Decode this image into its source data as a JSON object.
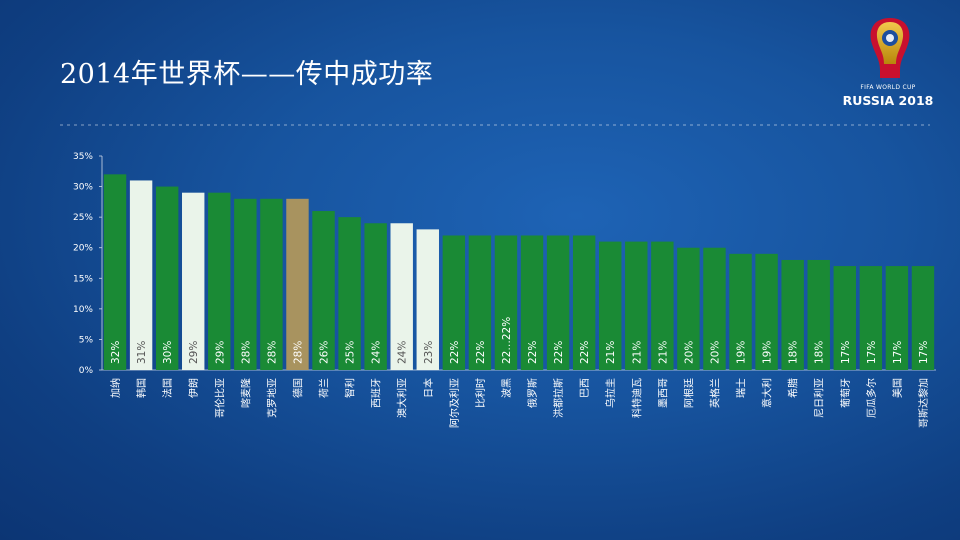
{
  "slide": {
    "title": "2014年世界杯——传中成功率"
  },
  "logo": {
    "subtitle": "FIFA WORLD CUP",
    "title": "RUSSIA 2018"
  },
  "colors": {
    "bar_default": "#1a8a35",
    "bar_highlight_light": "#eaf4ea",
    "bar_highlight_gold": "#a8935f",
    "axis": "#cfd8e8"
  },
  "chart_data": {
    "type": "bar",
    "title": "",
    "xlabel": "",
    "ylabel": "",
    "ylim": [
      0,
      35
    ],
    "yticks": [
      "0%",
      "5%",
      "10%",
      "15%",
      "20%",
      "25%",
      "30%",
      "35%"
    ],
    "grid": false,
    "categories": [
      "加纳",
      "韩国",
      "法国",
      "伊朗",
      "哥伦比亚",
      "喀麦隆",
      "克罗地亚",
      "德国",
      "荷兰",
      "智利",
      "西班牙",
      "澳大利亚",
      "日本",
      "阿尔及利亚",
      "比利时",
      "波黑",
      "俄罗斯",
      "洪都拉斯",
      "巴西",
      "乌拉圭",
      "科特迪瓦",
      "墨西哥",
      "阿根廷",
      "英格兰",
      "瑞士",
      "意大利",
      "希腊",
      "尼日利亚",
      "葡萄牙",
      "厄瓜多尔",
      "美国",
      "哥斯达黎加"
    ],
    "values": [
      32,
      31,
      30,
      29,
      29,
      28,
      28,
      28,
      26,
      25,
      24,
      24,
      23,
      22,
      22,
      22,
      22,
      22,
      22,
      21,
      21,
      21,
      20,
      20,
      19,
      19,
      18,
      18,
      17,
      17,
      17,
      17
    ],
    "value_labels": [
      "32%",
      "31%",
      "30%",
      "29%",
      "29%",
      "28%",
      "28%",
      "28%",
      "26%",
      "25%",
      "24%",
      "24%",
      "23%",
      "22%",
      "22%",
      "22…22%",
      "22%",
      "22%",
      "22%",
      "21%",
      "21%",
      "21%",
      "20%",
      "20%",
      "19%",
      "19%",
      "18%",
      "18%",
      "17%",
      "17%",
      "17%",
      "17%"
    ],
    "highlight": {
      "韩国": "light",
      "伊朗": "light",
      "澳大利亚": "light",
      "日本": "light",
      "德国": "gold"
    }
  }
}
